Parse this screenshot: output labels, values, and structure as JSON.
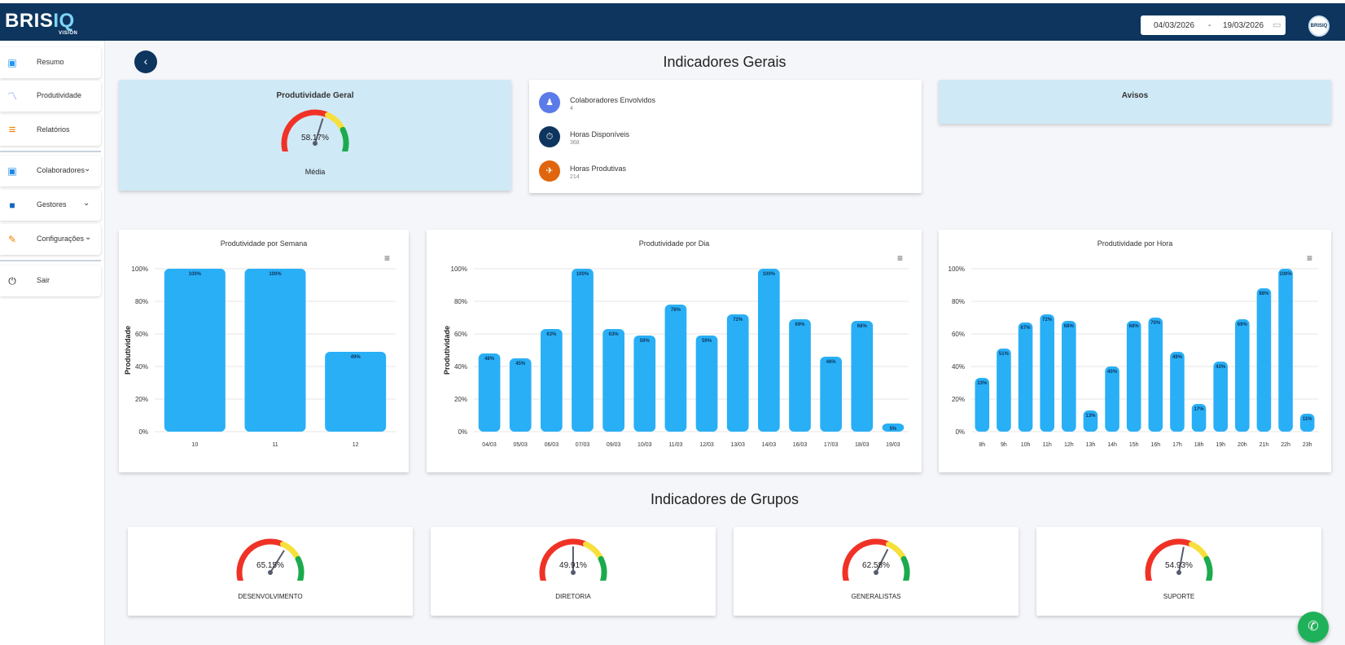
{
  "app": {
    "logo_main": "BRIS",
    "logo_accent": "IQ",
    "logo_sub": "VISION",
    "avatar_text": "BRISIQ"
  },
  "date_range": {
    "start": "04/03/2026",
    "separator": "-",
    "end": "19/03/2026",
    "calendar_icon": "calendar-icon"
  },
  "sidebar": {
    "items": [
      {
        "label": "Resumo",
        "icon": "chart-icon",
        "color": "#2196f3",
        "glyph": "▣"
      },
      {
        "label": "Produtividade",
        "icon": "trend-icon",
        "color": "#5c7cfa",
        "glyph": "〽"
      },
      {
        "label": "Relatórios",
        "icon": "list-icon",
        "color": "#f57c00",
        "glyph": "≡"
      },
      {
        "label": "Colaboradores",
        "icon": "person-badge-icon",
        "color": "#1e88e5",
        "glyph": "▣",
        "has_chevron": true
      },
      {
        "label": "Gestores",
        "icon": "briefcase-icon",
        "color": "#1565c0",
        "glyph": "■",
        "has_chevron": true
      },
      {
        "label": "Configurações",
        "icon": "wrench-icon",
        "color": "#f57c00",
        "glyph": "🔧",
        "has_chevron": true
      },
      {
        "label": "Sair",
        "icon": "power-icon",
        "color": "#222222",
        "glyph": "⏻"
      }
    ]
  },
  "general": {
    "title": "Indicadores Gerais",
    "produtividade": {
      "title": "Produtividade Geral",
      "value": 58.17,
      "value_text": "58.17%",
      "label": "Média"
    },
    "indicators": [
      {
        "label": "Colaboradores Envolvidos",
        "value": "4",
        "icon": "users-icon",
        "color": "#5b7be8",
        "glyph": "♟"
      },
      {
        "label": "Horas Disponíveis",
        "value": "368",
        "icon": "stopwatch-icon",
        "color": "#0d355e",
        "glyph": "⏱"
      },
      {
        "label": "Horas Produtivas",
        "value": "214",
        "icon": "rocket-icon",
        "color": "#e0650c",
        "glyph": "✈"
      }
    ],
    "avisos": {
      "title": "Avisos"
    }
  },
  "chart_data": [
    {
      "type": "bar",
      "title": "Produtividade por Semana",
      "ylabel": "Produtividade",
      "categories": [
        "10",
        "11",
        "12"
      ],
      "values": [
        100,
        100,
        49
      ],
      "ylim": [
        0,
        100
      ],
      "yticks": [
        "0%",
        "20%",
        "40%",
        "60%",
        "80%",
        "100%"
      ],
      "color": "#29aff6"
    },
    {
      "type": "bar",
      "title": "Produtividade por Dia",
      "ylabel": "Produtividade",
      "categories": [
        "04/03",
        "05/03",
        "06/03",
        "07/03",
        "09/03",
        "10/03",
        "11/03",
        "12/03",
        "13/03",
        "14/03",
        "16/03",
        "17/03",
        "18/03",
        "19/03"
      ],
      "values": [
        48,
        45,
        63,
        100,
        63,
        59,
        78,
        59,
        72,
        100,
        69,
        46,
        68,
        5
      ],
      "ylim": [
        0,
        100
      ],
      "yticks": [
        "0%",
        "20%",
        "40%",
        "60%",
        "80%",
        "100%"
      ],
      "color": "#29aff6"
    },
    {
      "type": "bar",
      "title": "Produtividade por Hora",
      "ylabel": "",
      "categories": [
        "8h",
        "9h",
        "10h",
        "11h",
        "12h",
        "13h",
        "14h",
        "15h",
        "16h",
        "17h",
        "18h",
        "19h",
        "20h",
        "21h",
        "22h",
        "23h"
      ],
      "values": [
        33,
        51,
        67,
        72,
        68,
        13,
        40,
        68,
        70,
        49,
        17,
        43,
        69,
        88,
        100,
        11
      ],
      "ylim": [
        0,
        100
      ],
      "yticks": [
        "0%",
        "20%",
        "40%",
        "60%",
        "80%",
        "100%"
      ],
      "color": "#29aff6"
    }
  ],
  "groups": {
    "title": "Indicadores de Grupos",
    "items": [
      {
        "name": "DESENVOLVIMENTO",
        "value": 65.15,
        "value_text": "65.15%"
      },
      {
        "name": "DIRETORIA",
        "value": 49.91,
        "value_text": "49.91%"
      },
      {
        "name": "GENERALISTAS",
        "value": 62.58,
        "value_text": "62.58%"
      },
      {
        "name": "SUPORTE",
        "value": 54.93,
        "value_text": "54.93%"
      }
    ]
  },
  "whatsapp": {
    "icon": "whatsapp-icon"
  },
  "colors": {
    "header": "#0d355e",
    "gauge_red": "#f03226",
    "gauge_yellow": "#f7e03c",
    "gauge_green": "#1aab4e",
    "needle": "#555c6b"
  }
}
